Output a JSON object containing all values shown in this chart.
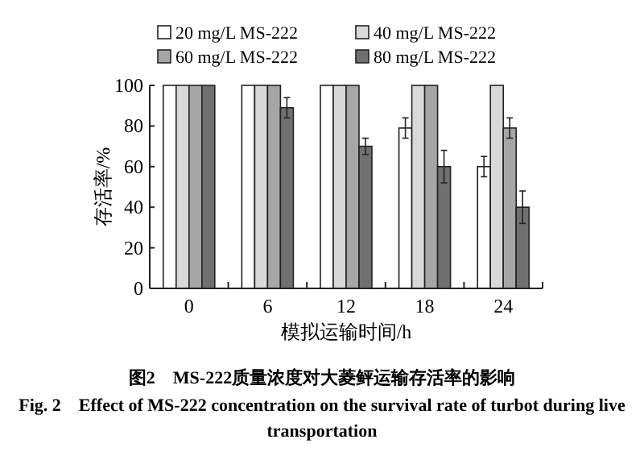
{
  "chart_data": {
    "type": "bar",
    "title": "图2　MS-222质量浓度对大菱鲆运输存活率的影响",
    "subtitle": "Fig. 2　Effect of MS-222 concentration on the survival rate of turbot during live transportation",
    "xlabel": "模拟运输时间/h",
    "ylabel": "存活率/%",
    "categories": [
      "0",
      "6",
      "12",
      "18",
      "24"
    ],
    "series": [
      {
        "name": "20 mg/L MS-222",
        "color": "#ffffff",
        "values": [
          100,
          100,
          100,
          79,
          60
        ],
        "errors": [
          null,
          null,
          null,
          5,
          5
        ]
      },
      {
        "name": "40 mg/L MS-222",
        "color": "#d9d9d9",
        "values": [
          100,
          100,
          100,
          100,
          100
        ],
        "errors": [
          null,
          null,
          null,
          null,
          null
        ]
      },
      {
        "name": "60 mg/L MS-222",
        "color": "#a6a6a6",
        "values": [
          100,
          100,
          100,
          100,
          79
        ],
        "errors": [
          null,
          null,
          null,
          null,
          5
        ]
      },
      {
        "name": "80 mg/L MS-222",
        "color": "#707070",
        "values": [
          100,
          89,
          70,
          60,
          40
        ],
        "errors": [
          null,
          5,
          4,
          8,
          8
        ]
      }
    ],
    "ylim": [
      0,
      100
    ],
    "yticks": [
      0,
      20,
      40,
      60,
      80,
      100
    ],
    "grid": false,
    "legend": "top"
  }
}
